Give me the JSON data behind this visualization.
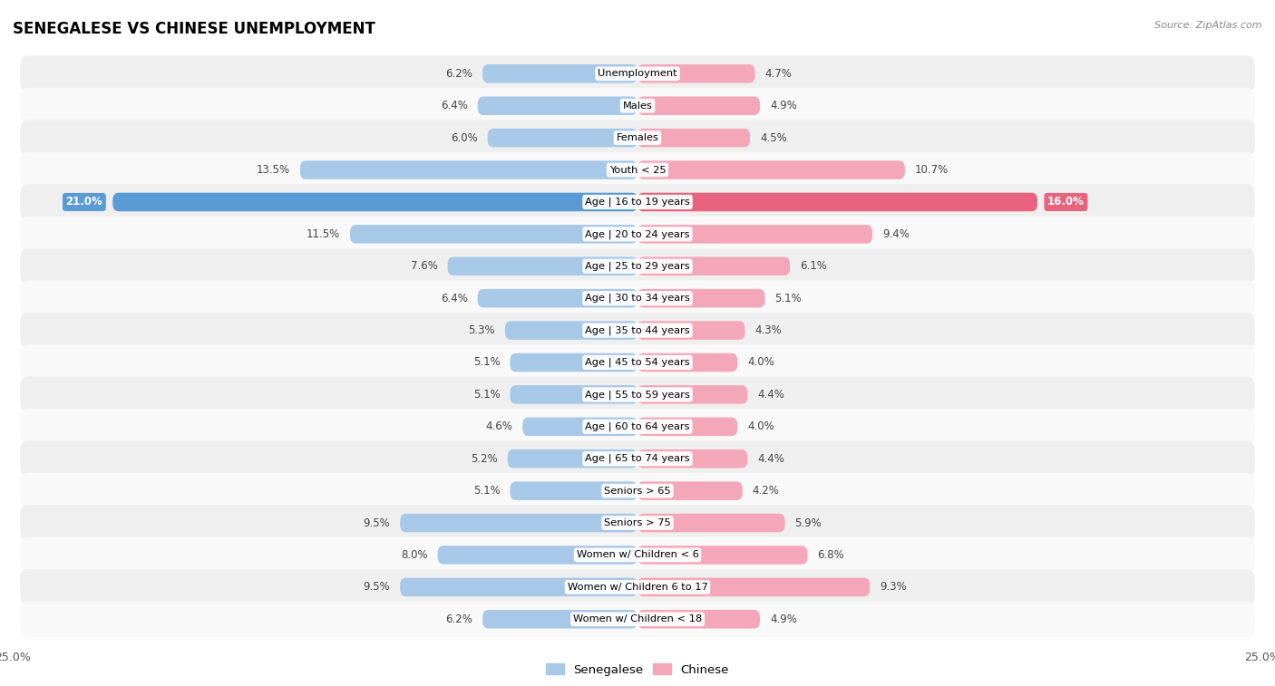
{
  "title": "SENEGALESE VS CHINESE UNEMPLOYMENT",
  "source": "Source: ZipAtlas.com",
  "categories": [
    "Unemployment",
    "Males",
    "Females",
    "Youth < 25",
    "Age | 16 to 19 years",
    "Age | 20 to 24 years",
    "Age | 25 to 29 years",
    "Age | 30 to 34 years",
    "Age | 35 to 44 years",
    "Age | 45 to 54 years",
    "Age | 55 to 59 years",
    "Age | 60 to 64 years",
    "Age | 65 to 74 years",
    "Seniors > 65",
    "Seniors > 75",
    "Women w/ Children < 6",
    "Women w/ Children 6 to 17",
    "Women w/ Children < 18"
  ],
  "senegalese": [
    6.2,
    6.4,
    6.0,
    13.5,
    21.0,
    11.5,
    7.6,
    6.4,
    5.3,
    5.1,
    5.1,
    4.6,
    5.2,
    5.1,
    9.5,
    8.0,
    9.5,
    6.2
  ],
  "chinese": [
    4.7,
    4.9,
    4.5,
    10.7,
    16.0,
    9.4,
    6.1,
    5.1,
    4.3,
    4.0,
    4.4,
    4.0,
    4.4,
    4.2,
    5.9,
    6.8,
    9.3,
    4.9
  ],
  "senegalese_color": "#a8c8e8",
  "senegalese_highlight_color": "#5b9bd5",
  "chinese_color": "#f4a7b9",
  "chinese_highlight_color": "#e8637e",
  "highlight_row": 4,
  "max_val": 25.0,
  "bar_height": 0.58,
  "bg_color": "#ffffff",
  "row_alt_color": "#e8e8e8",
  "row_main_color": "#f5f5f5"
}
